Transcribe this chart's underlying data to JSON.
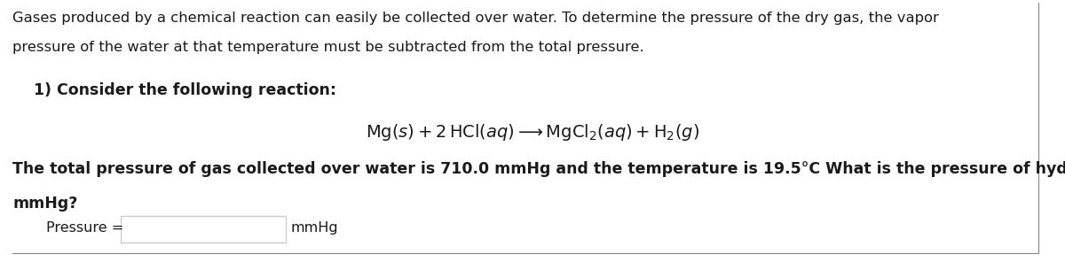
{
  "bg_color": "#ffffff",
  "text_color": "#1a1a1a",
  "gray_color": "#888888",
  "light_gray": "#cccccc",
  "intro_line1": "Gases produced by a chemical reaction can easily be collected over water. To determine the pressure of the dry gas, the vapor",
  "intro_line2": "pressure of the water at that temperature must be subtracted from the total pressure.",
  "section_label": "1) Consider the following reaction:",
  "bold_text_line1": "The total pressure of gas collected over water is 710.0 mmHg and the temperature is 19.5°C What is the pressure of hydrogen gas formed in",
  "bold_text_line2": "mmHg?",
  "pressure_label": "Pressure =",
  "pressure_unit": "mmHg",
  "font_size_intro": 11.8,
  "font_size_section": 12.5,
  "font_size_equation": 14,
  "font_size_bold": 12.5,
  "font_size_pressure": 11.5
}
